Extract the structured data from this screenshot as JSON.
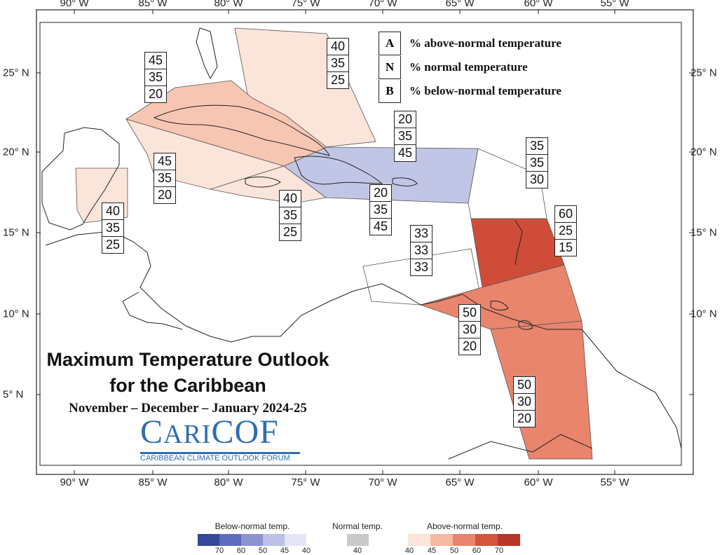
{
  "title_line1": "Maximum Temperature Outlook",
  "title_line2": "for the Caribbean",
  "subtitle": "November – December – January 2024-25",
  "logo": {
    "word_big1": "C",
    "word_small1": "ARI",
    "word_big2": "COF",
    "tagline": "CARIBBEAN CLIMATE OUTLOOK FORUM"
  },
  "key": [
    {
      "letter": "A",
      "text": "% above-normal temperature"
    },
    {
      "letter": "N",
      "text": "% normal temperature"
    },
    {
      "letter": "B",
      "text": "% below-normal temperature"
    }
  ],
  "longitude_labels": [
    "90° W",
    "85° W",
    "80° W",
    "75° W",
    "70° W",
    "65° W",
    "60° W",
    "55° W"
  ],
  "latitude_labels": [
    "25° N",
    "20° N",
    "15° N",
    "10° N",
    "5° N"
  ],
  "regions": [
    {
      "name": "bahamas",
      "values": [
        "40",
        "35",
        "25"
      ],
      "color": "#fbe4da"
    },
    {
      "name": "cuba",
      "values": [
        "45",
        "35",
        "20"
      ],
      "color": "#f7c6b3"
    },
    {
      "name": "cayman",
      "values": [
        "45",
        "35",
        "20"
      ],
      "color": "#fbe4da"
    },
    {
      "name": "belize",
      "values": [
        "40",
        "35",
        "25"
      ],
      "color": "#fbe4da"
    },
    {
      "name": "jamaica",
      "values": [
        "40",
        "35",
        "25"
      ],
      "color": "#fbe4da"
    },
    {
      "name": "hispaniola-puerto-rico",
      "values": [
        "20",
        "35",
        "45"
      ],
      "color": "#c2c6e6"
    },
    {
      "name": "southern-greater-antilles",
      "values": [
        "20",
        "35",
        "45"
      ],
      "color": "#c2c6e6"
    },
    {
      "name": "leeward-islands",
      "values": [
        "35",
        "35",
        "30"
      ],
      "color": "#ffffff"
    },
    {
      "name": "windward-islands",
      "values": [
        "60",
        "25",
        "15"
      ],
      "color": "#cf4d38"
    },
    {
      "name": "abc-islands",
      "values": [
        "33",
        "33",
        "33"
      ],
      "color": "#ffffff"
    },
    {
      "name": "trinidad",
      "values": [
        "50",
        "30",
        "20"
      ],
      "color": "#e9856d"
    },
    {
      "name": "guianas",
      "values": [
        "50",
        "30",
        "20"
      ],
      "color": "#e9856d"
    }
  ],
  "legend": {
    "below": {
      "title": "Below-normal temp.",
      "ticks": [
        "70",
        "60",
        "50",
        "45",
        "40"
      ],
      "colors": [
        "#34489a",
        "#5d6cbc",
        "#8c94d0",
        "#bcc0e6",
        "#e4e6f6"
      ]
    },
    "normal": {
      "title": "Normal temp.",
      "ticks": [
        "40"
      ],
      "colors": [
        "#c9c9c9"
      ]
    },
    "above": {
      "title": "Above-normal temp.",
      "ticks": [
        "40",
        "45",
        "50",
        "60",
        "70"
      ],
      "colors": [
        "#fbe4da",
        "#f6b9a2",
        "#e9856d",
        "#d4543c",
        "#b8352a"
      ]
    }
  }
}
